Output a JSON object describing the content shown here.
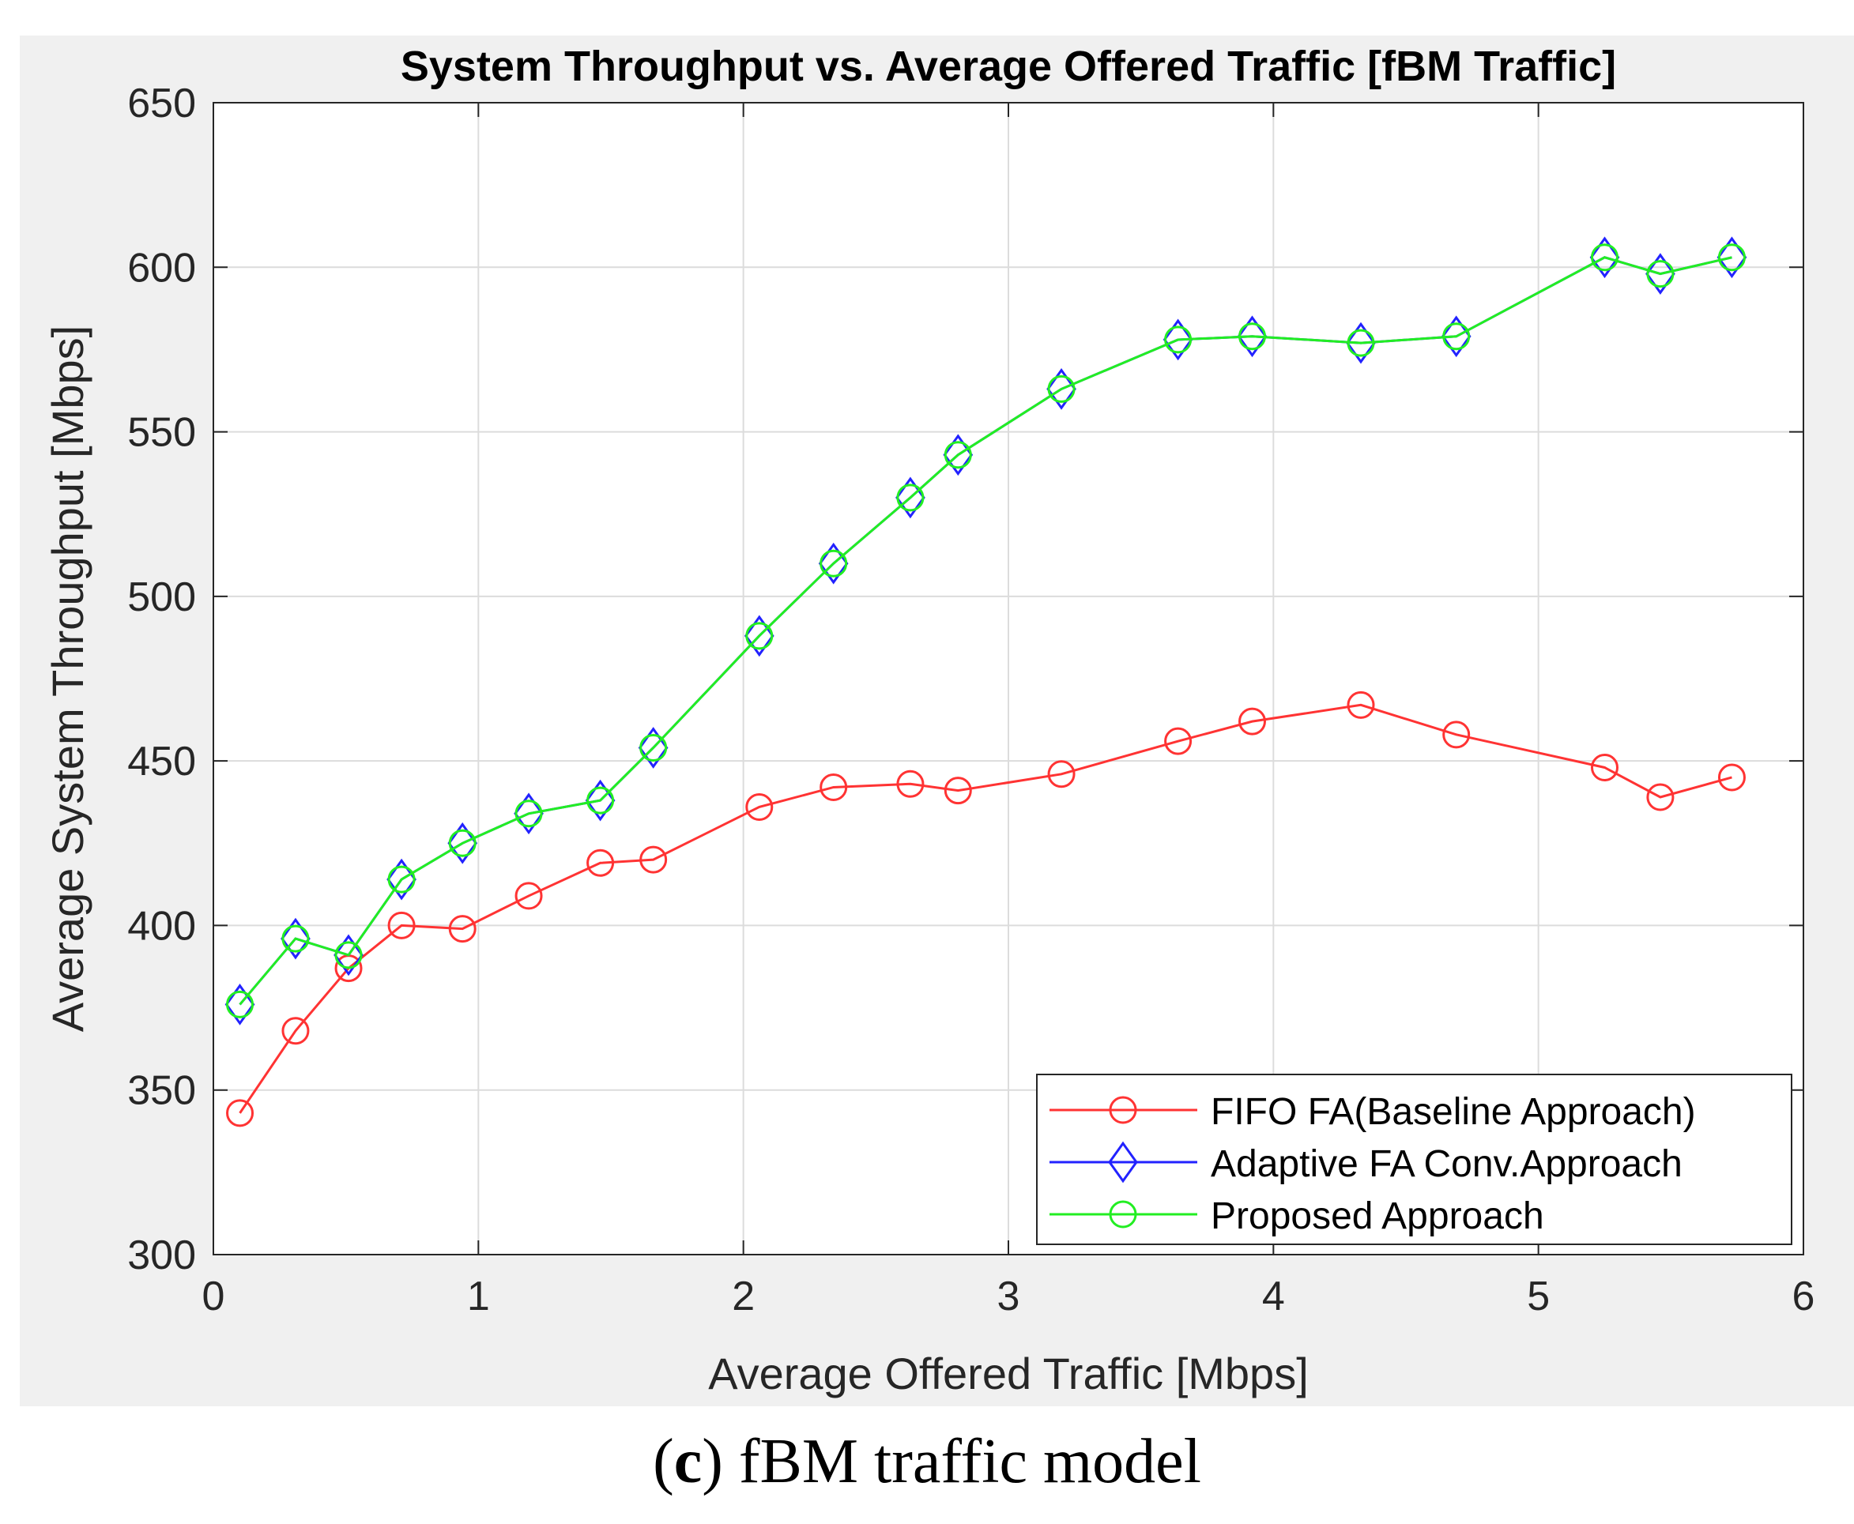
{
  "chart_data": {
    "type": "line",
    "title": "System Throughput vs. Average Offered Traffic [fBM Traffic]",
    "xlabel": "Average Offered Traffic [Mbps]",
    "ylabel": "Average System Throughput [Mbps]",
    "xlim": [
      0,
      6
    ],
    "ylim": [
      300,
      650
    ],
    "xticks": [
      0,
      1,
      2,
      3,
      4,
      5,
      6
    ],
    "yticks": [
      300,
      350,
      400,
      450,
      500,
      550,
      600,
      650
    ],
    "grid": true,
    "legend_position": "bottom-right",
    "x": [
      0.1,
      0.31,
      0.51,
      0.71,
      0.94,
      1.19,
      1.46,
      1.66,
      2.06,
      2.34,
      2.63,
      2.81,
      3.2,
      3.64,
      3.92,
      4.33,
      4.69,
      5.25,
      5.46,
      5.73
    ],
    "series": [
      {
        "name": "FIFO FA(Baseline Approach)",
        "color": "#ff3333",
        "marker": "circle",
        "values": [
          343,
          368,
          387,
          400,
          399,
          409,
          419,
          420,
          436,
          442,
          443,
          441,
          446,
          456,
          462,
          467,
          458,
          448,
          439,
          445
        ]
      },
      {
        "name": "Adaptive FA Conv.Approach",
        "color": "#2222ff",
        "marker": "diamond",
        "values": [
          376,
          396,
          391,
          414,
          425,
          434,
          438,
          454,
          488,
          510,
          530,
          543,
          563,
          578,
          579,
          577,
          579,
          603,
          598,
          603
        ]
      },
      {
        "name": "Proposed Approach",
        "color": "#22ee22",
        "marker": "circle",
        "values": [
          376,
          396,
          391,
          414,
          425,
          434,
          438,
          454,
          488,
          510,
          530,
          543,
          563,
          578,
          579,
          577,
          579,
          603,
          598,
          603
        ]
      }
    ]
  },
  "caption": {
    "open": "(",
    "letter": "c",
    "rest": ") fBM traffic model"
  }
}
